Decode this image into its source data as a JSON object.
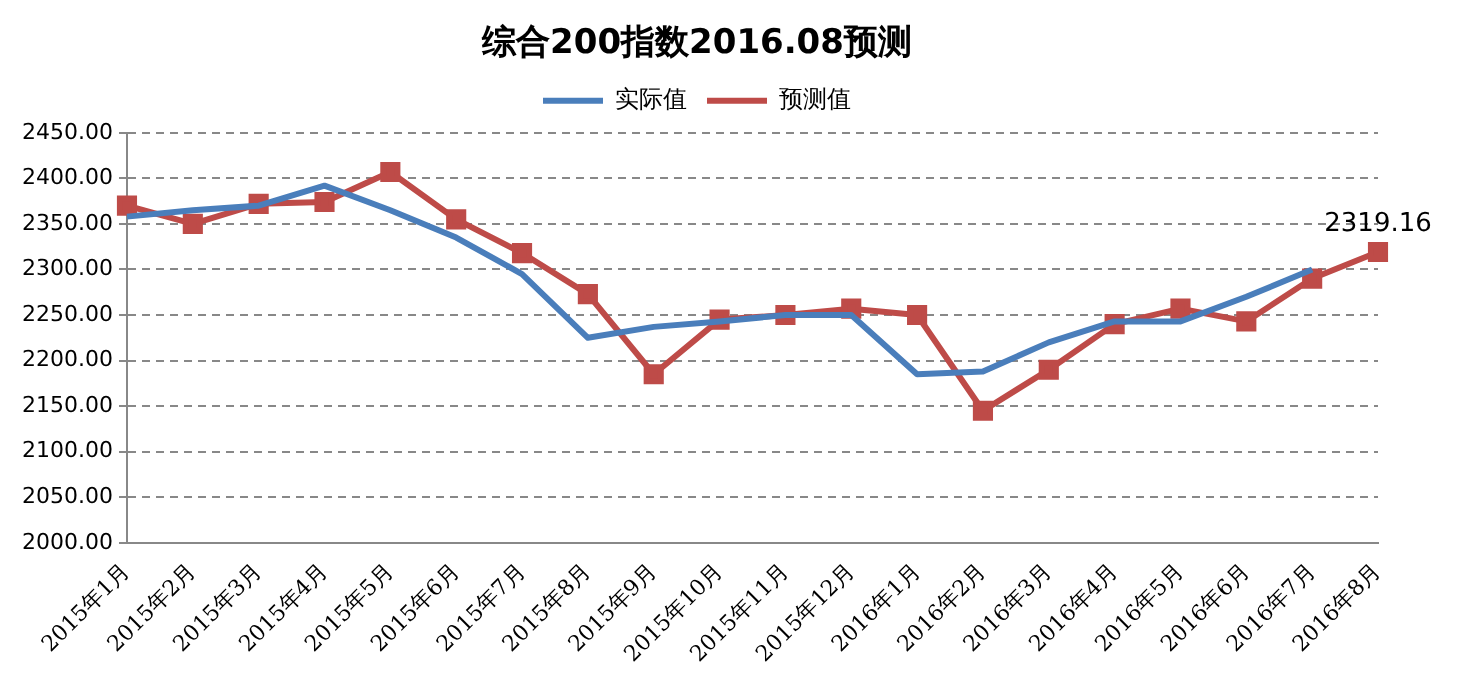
{
  "chart_data": {
    "type": "line",
    "title": "综合200指数2016.08预测",
    "categories": [
      "2015年1月",
      "2015年2月",
      "2015年3月",
      "2015年4月",
      "2015年5月",
      "2015年6月",
      "2015年7月",
      "2015年8月",
      "2015年9月",
      "2015年10月",
      "2015年11月",
      "2015年12月",
      "2016年1月",
      "2016年2月",
      "2016年3月",
      "2016年4月",
      "2016年5月",
      "2016年6月",
      "2016年7月",
      "2016年8月"
    ],
    "series": [
      {
        "name": "实际值",
        "color": "#4a7ebb",
        "marker": "none",
        "values": [
          2358,
          2365,
          2370,
          2392,
          2365,
          2335,
          2295,
          2225,
          2237,
          2243,
          2250,
          2250,
          2185,
          2188,
          2220,
          2243,
          2243,
          2270,
          2300,
          null
        ]
      },
      {
        "name": "预测值",
        "color": "#be4b48",
        "marker": "square",
        "values": [
          2370,
          2350,
          2372,
          2374,
          2407,
          2355,
          2318,
          2273,
          2185,
          2245,
          2250,
          2257,
          2250,
          2145,
          2190,
          2240,
          2257,
          2243,
          2290,
          2319.16
        ],
        "value_labels": [
          null,
          null,
          null,
          null,
          null,
          null,
          null,
          null,
          null,
          null,
          null,
          null,
          null,
          null,
          null,
          null,
          null,
          null,
          null,
          "2319.16"
        ]
      }
    ],
    "ylim": [
      2000,
      2450
    ],
    "yticks": [
      {
        "value": 2000,
        "label": "2000.00"
      },
      {
        "value": 2050,
        "label": "2050.00"
      },
      {
        "value": 2100,
        "label": "2100.00"
      },
      {
        "value": 2150,
        "label": "2150.00"
      },
      {
        "value": 2200,
        "label": "2200.00"
      },
      {
        "value": 2250,
        "label": "2250.00"
      },
      {
        "value": 2300,
        "label": "2300.00"
      },
      {
        "value": 2350,
        "label": "2350.00"
      },
      {
        "value": 2400,
        "label": "2400.00"
      },
      {
        "value": 2450,
        "label": "2450.00"
      }
    ],
    "grid": "y",
    "legend": "top"
  }
}
